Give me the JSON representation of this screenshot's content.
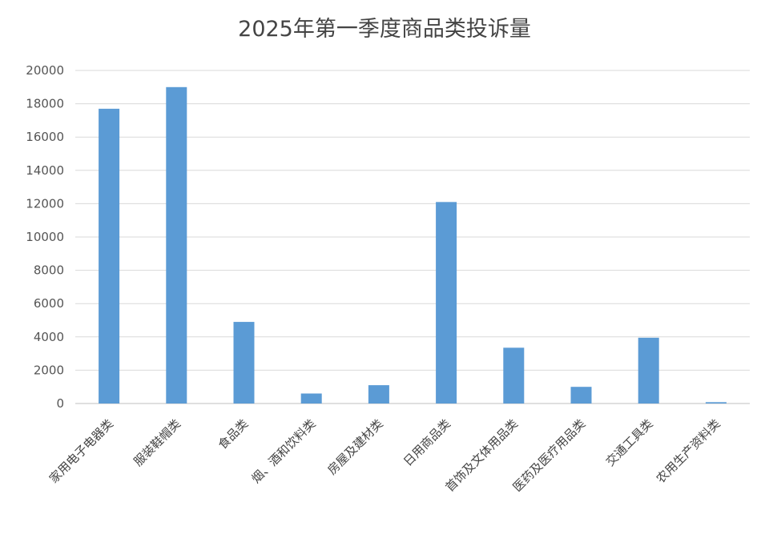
{
  "chart_data": {
    "type": "bar",
    "title": "2025年第一季度商品类投诉量",
    "xlabel": "",
    "ylabel": "",
    "categories": [
      "家用电子电器类",
      "服装鞋帽类",
      "食品类",
      "烟、酒和饮料类",
      "房屋及建材类",
      "日用商品类",
      "首饰及文体用品类",
      "医药及医疗用品类",
      "交通工具类",
      "农用生产资料类"
    ],
    "values": [
      17700,
      19000,
      4900,
      600,
      1100,
      12100,
      3350,
      1000,
      3950,
      80
    ],
    "ylim": [
      0,
      20000
    ],
    "yticks": [
      0,
      2000,
      4000,
      6000,
      8000,
      10000,
      12000,
      14000,
      16000,
      18000,
      20000
    ],
    "grid": true,
    "legend": "none",
    "bar_color": "#5b9bd5",
    "grid_color": "#d9d9d9"
  }
}
